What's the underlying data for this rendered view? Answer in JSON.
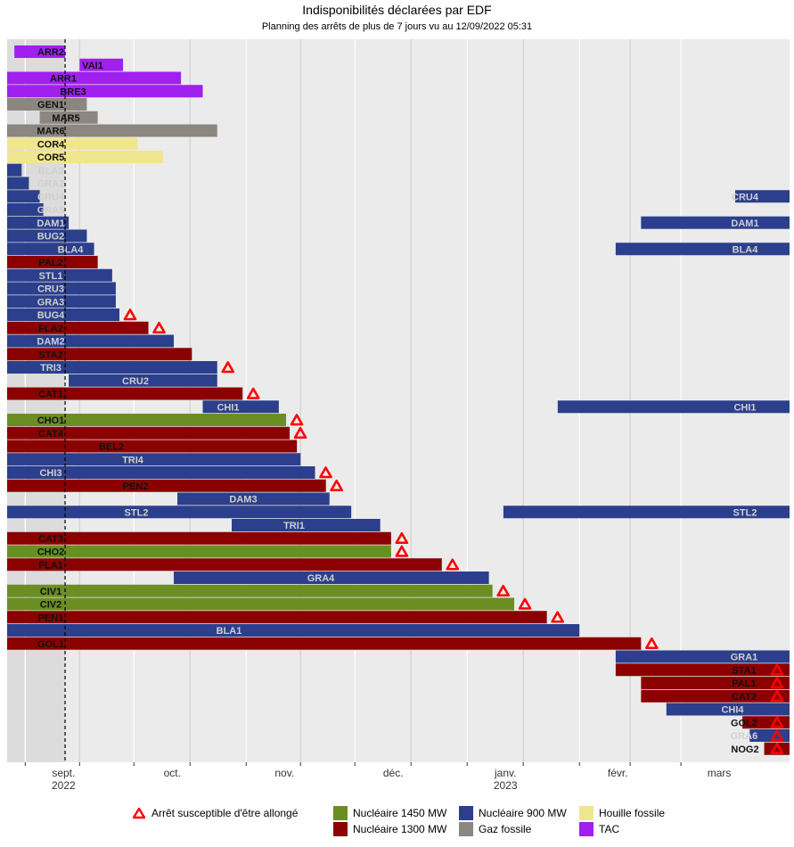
{
  "chart_data": {
    "type": "gantt",
    "title": "Indisponibilités déclarées par EDF",
    "subtitle": "Planning des arrêts de plus de 7 jours vu au 12/09/2022 05:31",
    "current_date": "2022-09-12",
    "x_ticks": [
      {
        "label": "sept.",
        "sub": "2022",
        "date": "2022-09-01"
      },
      {
        "label": "oct.",
        "sub": "",
        "date": "2022-10-01"
      },
      {
        "label": "nov.",
        "sub": "",
        "date": "2022-11-01"
      },
      {
        "label": "déc.",
        "sub": "",
        "date": "2022-12-01"
      },
      {
        "label": "janv.",
        "sub": "2023",
        "date": "2023-01-01"
      },
      {
        "label": "févr.",
        "sub": "",
        "date": "2023-02-01"
      },
      {
        "label": "mars",
        "sub": "",
        "date": "2023-03-01"
      }
    ],
    "colors": {
      "Nucléaire 1450 MW": "#6b8e23",
      "Nucléaire 1300 MW": "#8b0000",
      "Nucléaire 900 MW": "#2b3f8c",
      "Gaz fossile": "#8c8680",
      "Houille fossile": "#efe68f",
      "TAC": "#a020f0",
      "Arrêt susceptible d'être allongé": "#ff0000"
    },
    "legend": [
      {
        "label": "Arrêt susceptible d'être allongé",
        "kind": "triangle"
      },
      {
        "label": "Nucléaire 1450 MW",
        "kind": "box"
      },
      {
        "label": "Nucléaire 1300 MW",
        "kind": "box"
      },
      {
        "label": "Nucléaire 900 MW",
        "kind": "box"
      },
      {
        "label": "Gaz fossile",
        "kind": "box"
      },
      {
        "label": "Houille fossile",
        "kind": "box"
      },
      {
        "label": "TAC",
        "kind": "box"
      }
    ],
    "rows": [
      {
        "name": "ARR2",
        "type": "TAC",
        "start": "2022-08-29",
        "end": "2022-09-12",
        "ext": false
      },
      {
        "name": "VAI1",
        "type": "TAC",
        "start": "2022-09-16",
        "end": "2022-09-28",
        "ext": false
      },
      {
        "name": "ARR1",
        "type": "TAC",
        "start": "2022-08-27",
        "end": "2022-10-14",
        "ext": false
      },
      {
        "name": "BRE3",
        "type": "TAC",
        "start": "2022-08-27",
        "end": "2022-10-20",
        "ext": false
      },
      {
        "name": "GEN1",
        "type": "Gaz fossile",
        "start": "2022-08-27",
        "end": "2022-09-18",
        "ext": false
      },
      {
        "name": "MAR5",
        "type": "Gaz fossile",
        "start": "2022-09-05",
        "end": "2022-09-21",
        "ext": false
      },
      {
        "name": "MAR6",
        "type": "Gaz fossile",
        "start": "2022-08-27",
        "end": "2022-10-24",
        "ext": false
      },
      {
        "name": "COR4",
        "type": "Houille fossile",
        "start": "2022-08-27",
        "end": "2022-10-02",
        "ext": false
      },
      {
        "name": "COR5",
        "type": "Houille fossile",
        "start": "2022-08-27",
        "end": "2022-10-09",
        "ext": false
      },
      {
        "name": "BLA3",
        "type": "Nucléaire 900 MW",
        "start": "2022-08-27",
        "end": "2022-08-31",
        "ext": false
      },
      {
        "name": "GRA2",
        "type": "Nucléaire 900 MW",
        "start": "2022-08-27",
        "end": "2022-09-02",
        "ext": false
      },
      {
        "name": "CRU4",
        "type": "Nucléaire 900 MW",
        "start": "2022-08-27",
        "end": "2022-09-05",
        "ext": false
      },
      {
        "name": "GRA5",
        "type": "Nucléaire 900 MW",
        "start": "2022-08-27",
        "end": "2022-09-06",
        "ext": false
      },
      {
        "name": "DAM1",
        "type": "Nucléaire 900 MW",
        "start": "2022-08-27",
        "end": "2022-09-13",
        "ext": false
      },
      {
        "name": "BUG2",
        "type": "Nucléaire 900 MW",
        "start": "2022-08-27",
        "end": "2022-09-18",
        "ext": false
      },
      {
        "name": "BLA4",
        "type": "Nucléaire 900 MW",
        "start": "2022-08-27",
        "end": "2022-09-20",
        "ext": false
      },
      {
        "name": "PAL2",
        "type": "Nucléaire 1300 MW",
        "start": "2022-08-27",
        "end": "2022-09-21",
        "ext": false
      },
      {
        "name": "STL1",
        "type": "Nucléaire 900 MW",
        "start": "2022-08-27",
        "end": "2022-09-25",
        "ext": false
      },
      {
        "name": "CRU3",
        "type": "Nucléaire 900 MW",
        "start": "2022-08-27",
        "end": "2022-09-26",
        "ext": false
      },
      {
        "name": "GRA3",
        "type": "Nucléaire 900 MW",
        "start": "2022-08-27",
        "end": "2022-09-26",
        "ext": false
      },
      {
        "name": "BUG4",
        "type": "Nucléaire 900 MW",
        "start": "2022-08-27",
        "end": "2022-09-27",
        "ext": true
      },
      {
        "name": "FLA2",
        "type": "Nucléaire 1300 MW",
        "start": "2022-08-27",
        "end": "2022-10-05",
        "ext": true
      },
      {
        "name": "DAM2",
        "type": "Nucléaire 900 MW",
        "start": "2022-08-27",
        "end": "2022-10-12",
        "ext": false
      },
      {
        "name": "STA2",
        "type": "Nucléaire 1300 MW",
        "start": "2022-08-27",
        "end": "2022-10-17",
        "ext": false
      },
      {
        "name": "TRI3",
        "type": "Nucléaire 900 MW",
        "start": "2022-08-27",
        "end": "2022-10-24",
        "ext": true
      },
      {
        "name": "CRU2",
        "type": "Nucléaire 900 MW",
        "start": "2022-09-13",
        "end": "2022-10-24",
        "ext": false
      },
      {
        "name": "CAT1",
        "type": "Nucléaire 1300 MW",
        "start": "2022-08-27",
        "end": "2022-10-31",
        "ext": true
      },
      {
        "name": "CHI1",
        "type": "Nucléaire 900 MW",
        "start": "2022-10-20",
        "end": "2022-11-10",
        "ext": false
      },
      {
        "name": "CHO1",
        "type": "Nucléaire 1450 MW",
        "start": "2022-08-27",
        "end": "2022-11-12",
        "ext": true
      },
      {
        "name": "CAT4",
        "type": "Nucléaire 1300 MW",
        "start": "2022-08-27",
        "end": "2022-11-13",
        "ext": true
      },
      {
        "name": "BEL2",
        "type": "Nucléaire 1300 MW",
        "start": "2022-08-27",
        "end": "2022-11-15",
        "ext": false
      },
      {
        "name": "TRI4",
        "type": "Nucléaire 900 MW",
        "start": "2022-08-27",
        "end": "2022-11-16",
        "ext": false
      },
      {
        "name": "CHI3",
        "type": "Nucléaire 900 MW",
        "start": "2022-08-27",
        "end": "2022-11-20",
        "ext": true
      },
      {
        "name": "PEN2",
        "type": "Nucléaire 1300 MW",
        "start": "2022-08-27",
        "end": "2022-11-23",
        "ext": true
      },
      {
        "name": "DAM3",
        "type": "Nucléaire 900 MW",
        "start": "2022-10-13",
        "end": "2022-11-24",
        "ext": false
      },
      {
        "name": "STL2",
        "type": "Nucléaire 900 MW",
        "start": "2022-08-27",
        "end": "2022-11-30",
        "ext": false
      },
      {
        "name": "TRI1",
        "type": "Nucléaire 900 MW",
        "start": "2022-10-28",
        "end": "2022-12-08",
        "ext": false
      },
      {
        "name": "CAT3",
        "type": "Nucléaire 1300 MW",
        "start": "2022-08-27",
        "end": "2022-12-11",
        "ext": true
      },
      {
        "name": "CHO2",
        "type": "Nucléaire 1450 MW",
        "start": "2022-08-27",
        "end": "2022-12-11",
        "ext": true
      },
      {
        "name": "FLA1",
        "type": "Nucléaire 1300 MW",
        "start": "2022-08-27",
        "end": "2022-12-25",
        "ext": true
      },
      {
        "name": "GRA4",
        "type": "Nucléaire 900 MW",
        "start": "2022-10-12",
        "end": "2023-01-07",
        "ext": false
      },
      {
        "name": "CIV1",
        "type": "Nucléaire 1450 MW",
        "start": "2022-08-27",
        "end": "2023-01-08",
        "ext": true
      },
      {
        "name": "CIV2",
        "type": "Nucléaire 1450 MW",
        "start": "2022-08-27",
        "end": "2023-01-14",
        "ext": true
      },
      {
        "name": "PEN1",
        "type": "Nucléaire 1300 MW",
        "start": "2022-08-27",
        "end": "2023-01-23",
        "ext": true
      },
      {
        "name": "BLA1",
        "type": "Nucléaire 900 MW",
        "start": "2022-08-27",
        "end": "2023-02-01",
        "ext": false
      },
      {
        "name": "GOL1",
        "type": "Nucléaire 1300 MW",
        "start": "2022-08-27",
        "end": "2023-02-18",
        "ext": true
      },
      {
        "name": "GRA1",
        "type": "Nucléaire 900 MW",
        "start": "2023-02-11",
        "end": "2023-03-31",
        "ext": false
      },
      {
        "name": "STA1",
        "type": "Nucléaire 1300 MW",
        "start": "2023-02-11",
        "end": "2023-03-31",
        "ext": true
      },
      {
        "name": "PAL1",
        "type": "Nucléaire 1300 MW",
        "start": "2023-02-18",
        "end": "2023-03-31",
        "ext": true
      },
      {
        "name": "CAT2",
        "type": "Nucléaire 1300 MW",
        "start": "2023-02-18",
        "end": "2023-03-31",
        "ext": true
      },
      {
        "name": "CHI4",
        "type": "Nucléaire 900 MW",
        "start": "2023-02-25",
        "end": "2023-03-31",
        "ext": false
      },
      {
        "name": "GOL2",
        "type": "Nucléaire 1300 MW",
        "start": "2023-03-18",
        "end": "2023-03-31",
        "ext": true
      },
      {
        "name": "GRA6",
        "type": "Nucléaire 900 MW",
        "start": "2023-03-20",
        "end": "2023-03-31",
        "ext": true
      },
      {
        "name": "NOG2",
        "type": "Nucléaire 1300 MW",
        "start": "2023-03-24",
        "end": "2023-03-31",
        "ext": true
      }
    ],
    "extra_segments": [
      {
        "name": "CRU4",
        "type": "Nucléaire 900 MW",
        "start": "2023-03-16",
        "end": "2023-03-31"
      },
      {
        "name": "DAM1",
        "type": "Nucléaire 900 MW",
        "start": "2023-02-18",
        "end": "2023-03-31"
      },
      {
        "name": "BLA4",
        "type": "Nucléaire 900 MW",
        "start": "2023-02-11",
        "end": "2023-03-31"
      },
      {
        "name": "CHI1",
        "type": "Nucléaire 900 MW",
        "start": "2023-01-26",
        "end": "2023-03-31"
      },
      {
        "name": "STL2",
        "type": "Nucléaire 900 MW",
        "start": "2023-01-11",
        "end": "2023-03-31"
      }
    ]
  }
}
